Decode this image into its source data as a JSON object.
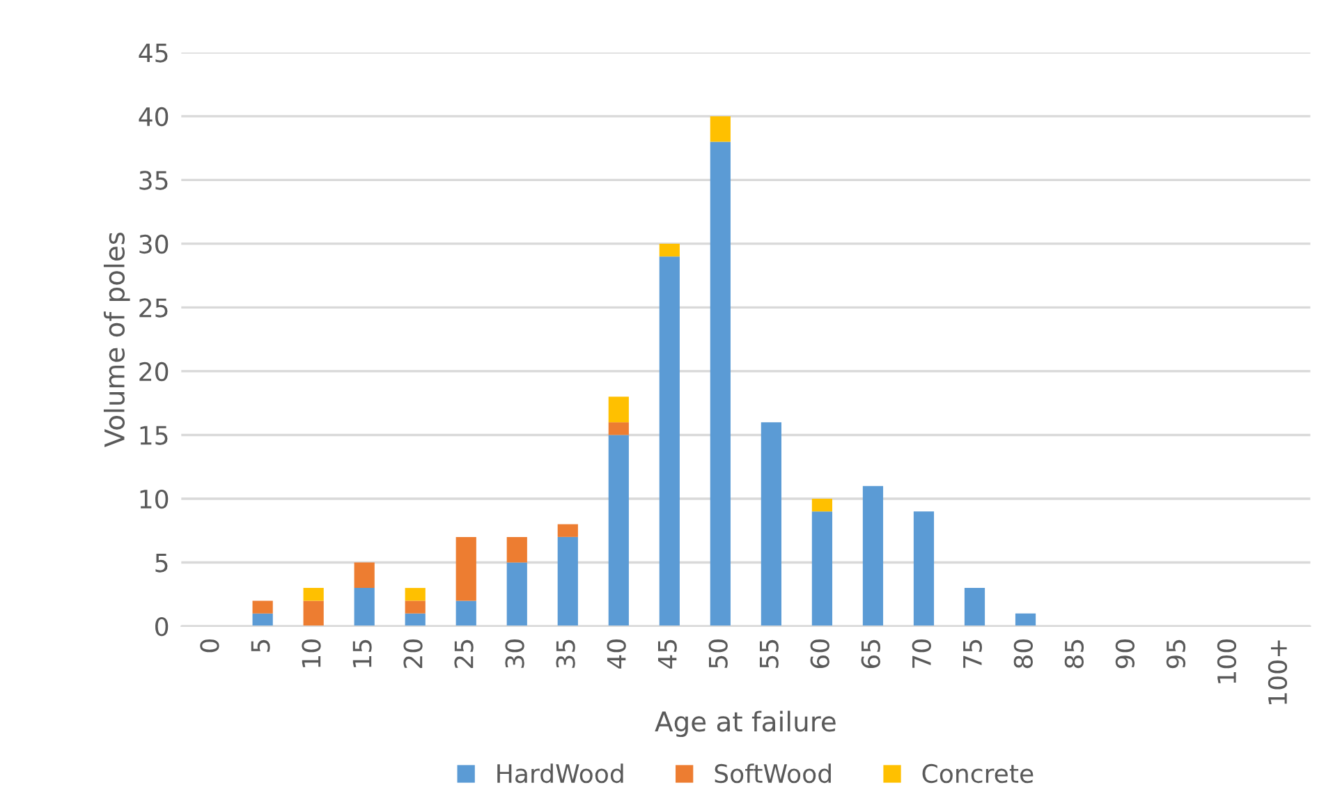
{
  "chart_data": {
    "type": "bar",
    "stacked": true,
    "xlabel": "Age at failure",
    "ylabel": "Volume of poles",
    "categories": [
      "0",
      "5",
      "10",
      "15",
      "20",
      "25",
      "30",
      "35",
      "40",
      "45",
      "50",
      "55",
      "60",
      "65",
      "70",
      "75",
      "80",
      "85",
      "90",
      "95",
      "100",
      "100+"
    ],
    "series": [
      {
        "name": "HardWood",
        "color": "#5b9bd5",
        "values": [
          0,
          1,
          0,
          3,
          1,
          2,
          5,
          7,
          15,
          29,
          38,
          16,
          9,
          11,
          9,
          3,
          1,
          0,
          0,
          0,
          0,
          0
        ]
      },
      {
        "name": "SoftWood",
        "color": "#ed7d31",
        "values": [
          0,
          1,
          2,
          2,
          1,
          5,
          2,
          1,
          1,
          0,
          0,
          0,
          0,
          0,
          0,
          0,
          0,
          0,
          0,
          0,
          0,
          0
        ]
      },
      {
        "name": "Concrete",
        "color": "#ffc000",
        "values": [
          0,
          0,
          1,
          0,
          1,
          0,
          0,
          0,
          2,
          1,
          2,
          0,
          1,
          0,
          0,
          0,
          0,
          0,
          0,
          0,
          0,
          0
        ]
      }
    ],
    "ylim": [
      0,
      45
    ],
    "yticks": [
      0,
      5,
      10,
      15,
      20,
      25,
      30,
      35,
      40,
      45
    ],
    "grid": "y",
    "legend": "bottom"
  }
}
